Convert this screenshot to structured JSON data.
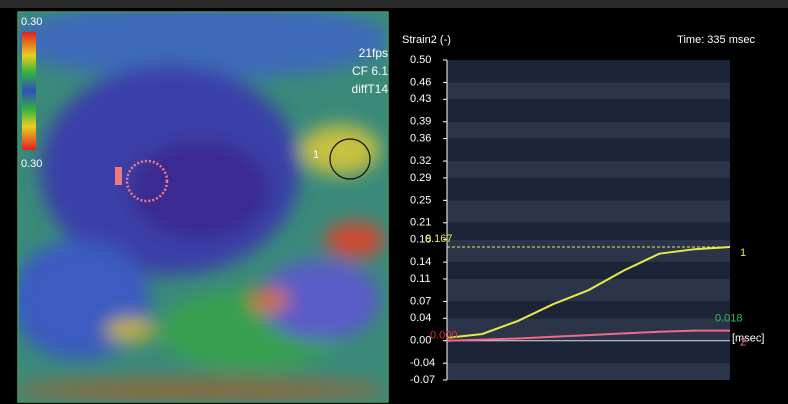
{
  "chart_data": {
    "type": "line",
    "title": "Strain2 (-)",
    "time_label": "Time: 335 msec",
    "x_label": "[msec]",
    "categories": [
      null,
      null,
      null,
      null,
      null,
      null,
      null,
      null,
      null
    ],
    "series": [
      {
        "name": "1",
        "color": "#e8e84a",
        "values": [
          0.005,
          0.012,
          0.035,
          0.065,
          0.09,
          0.125,
          0.155,
          0.163,
          0.167
        ]
      },
      {
        "name": "2",
        "color": "#f06a8a",
        "values": [
          0,
          0.002,
          0.004,
          0.007,
          0.01,
          0.013,
          0.016,
          0.018,
          0.018
        ],
        "value_labels": [
          "0.000",
          null,
          null,
          null,
          null,
          null,
          null,
          null,
          "0.018"
        ]
      }
    ],
    "reference_line": 0.167,
    "ylim": [
      -0.07,
      0.5
    ],
    "yticks": [
      {
        "value": 0.5,
        "label": "0.50"
      },
      0.46,
      0.43,
      0.39,
      0.36,
      0.32,
      0.29,
      0.25,
      0.21,
      0.18,
      0.14,
      0.11,
      0.07,
      0.04,
      {
        "value": 0,
        "label": "0.00"
      },
      -0.04,
      -0.07
    ],
    "grid": true
  },
  "image_overlay": {
    "scale_top": "0.30",
    "scale_bottom": "0.30",
    "fps": "21fps",
    "cf": "CF 6.1",
    "diff": "diffT14",
    "roi_label": "1"
  }
}
